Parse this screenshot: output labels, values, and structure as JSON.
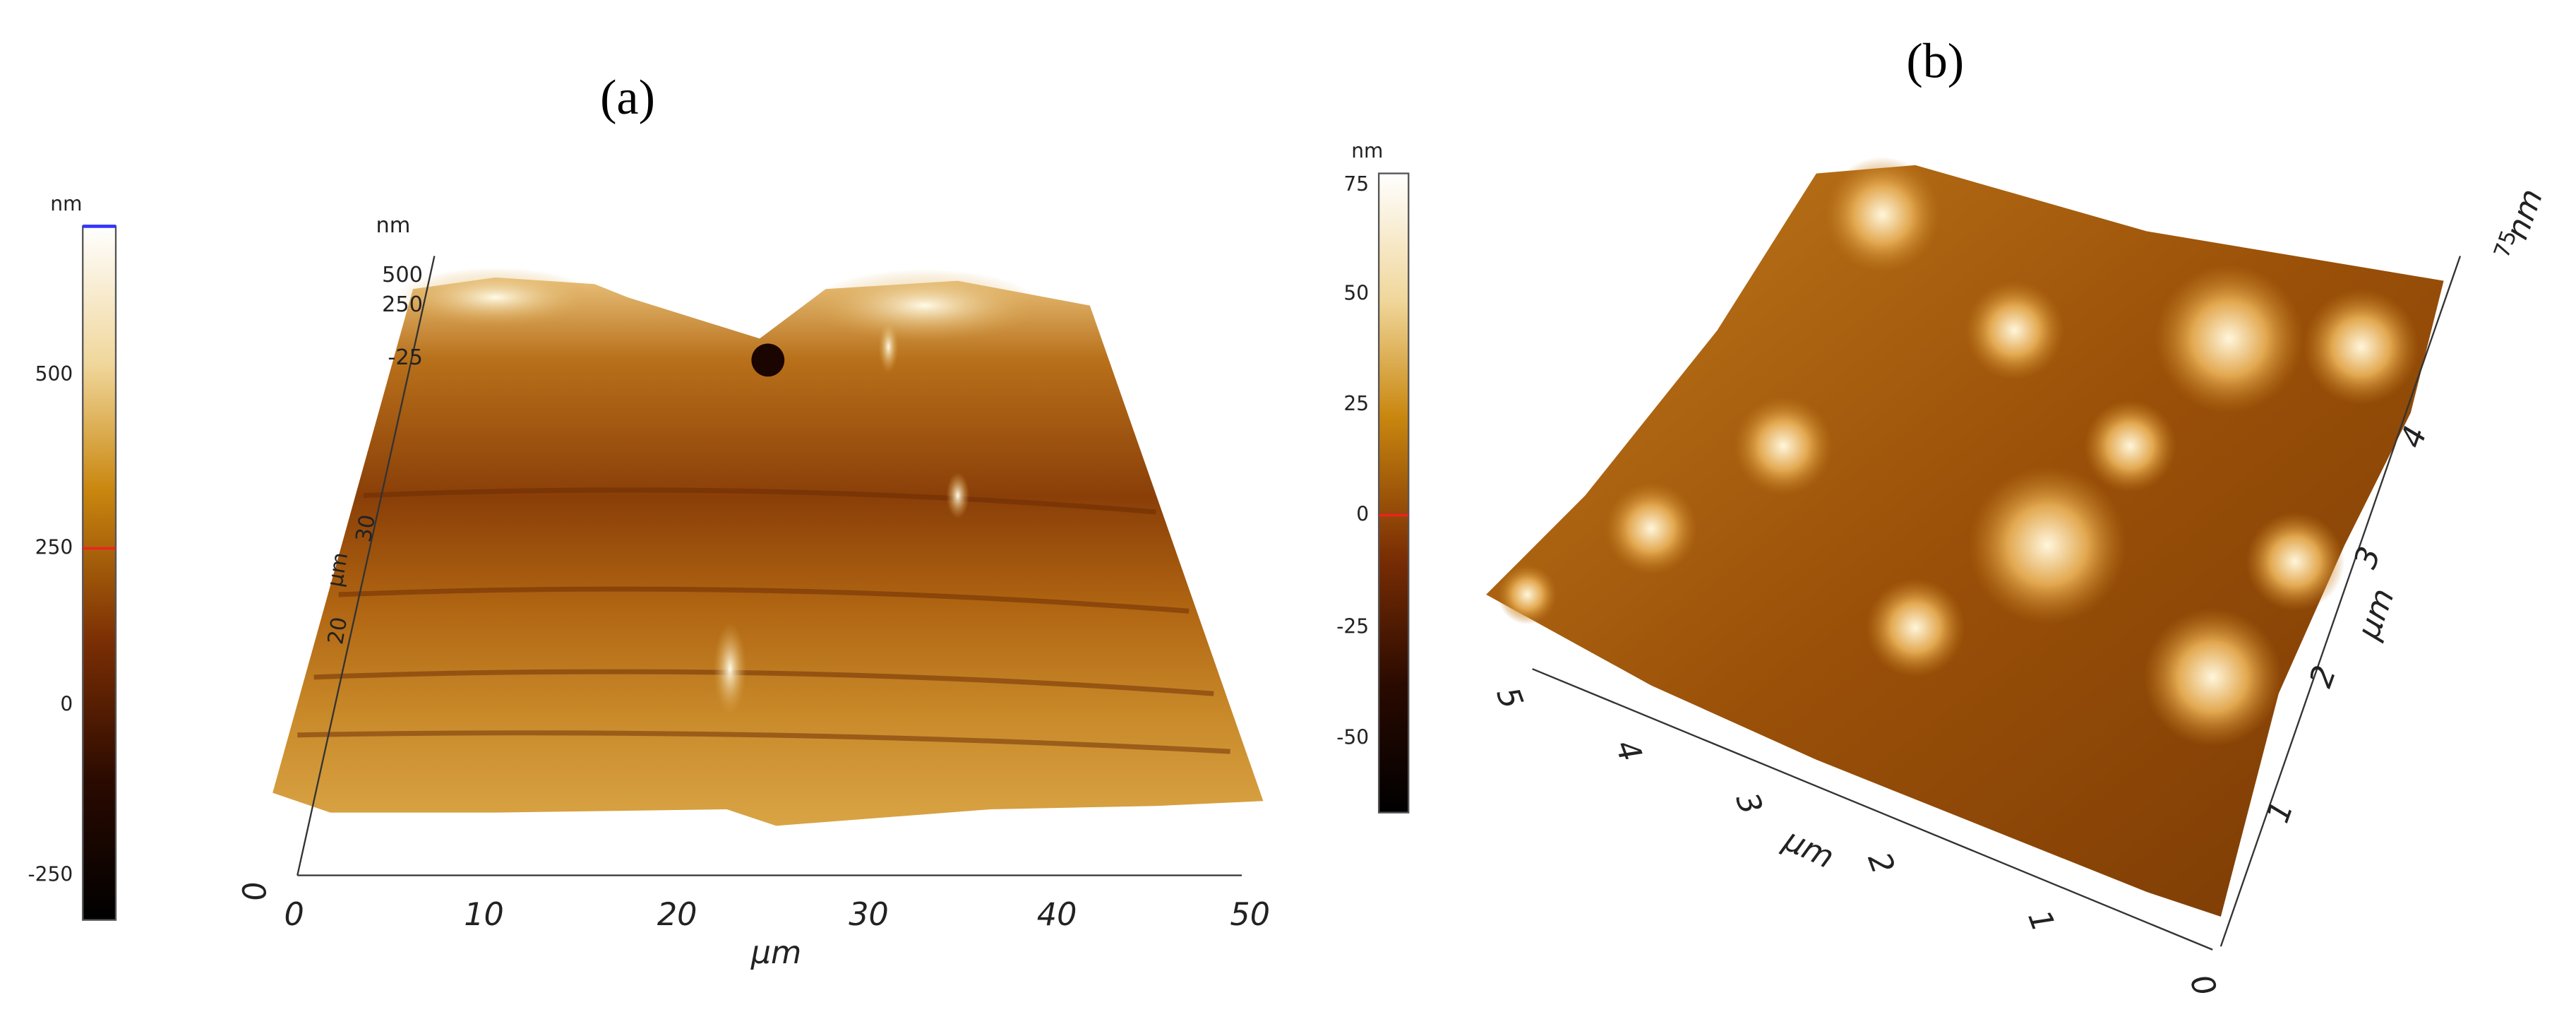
{
  "panels": [
    {
      "label": "(a)",
      "colorbar": {
        "unit": "nm",
        "ticks": [
          "500",
          "250",
          "0",
          "-250"
        ]
      },
      "z_axis": {
        "unit": "nm",
        "ticks": [
          "500",
          "250",
          "-25"
        ]
      },
      "y_axis": {
        "unit": "µm",
        "ticks": [
          "20",
          "30"
        ]
      },
      "x_axis": {
        "unit": "µm",
        "ticks": [
          "0",
          "10",
          "20",
          "30",
          "40",
          "50"
        ]
      },
      "origin": "0"
    },
    {
      "label": "(b)",
      "colorbar": {
        "unit": "nm",
        "ticks": [
          "75",
          "50",
          "25",
          "0",
          "-25",
          "-50"
        ]
      },
      "front_axis": {
        "unit": "µm",
        "ticks": [
          "5",
          "4",
          "3",
          "2",
          "1"
        ]
      },
      "right_axis": {
        "unit": "µm",
        "ticks": [
          "1",
          "2",
          "3",
          "4"
        ]
      },
      "z_axis": {
        "unit": "nm",
        "ticks": [
          "75"
        ]
      },
      "origin": "0"
    }
  ]
}
